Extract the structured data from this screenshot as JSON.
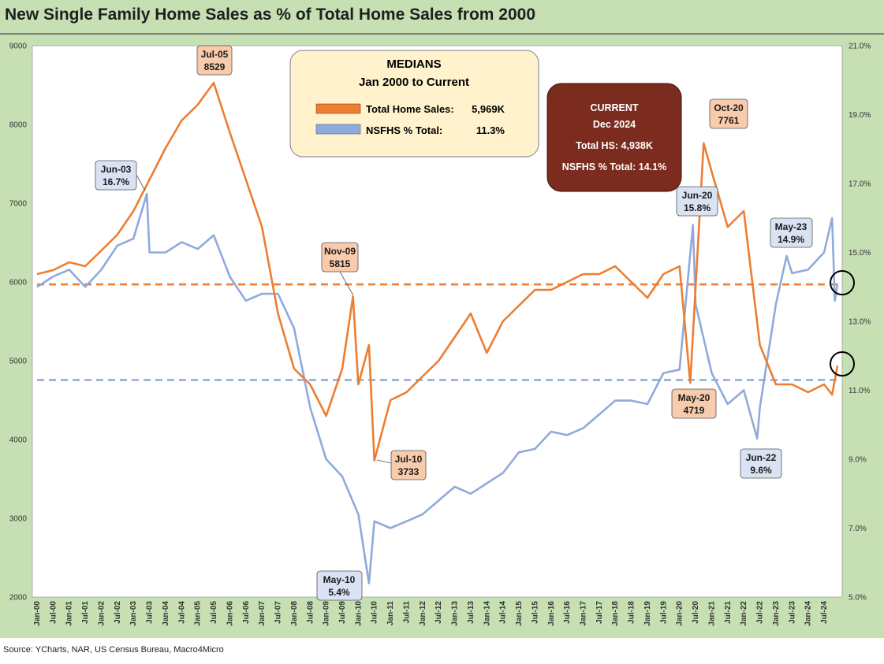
{
  "title": "New Single Family Home Sales as % of Total Home Sales from 2000",
  "source": "Source: YCharts, NAR, US Census Bureau, Macro4Micro",
  "colors": {
    "background": "#c6e0b4",
    "plot": "#ffffff",
    "total_sales": "#ed7d31",
    "nsfhs_pct": "#8faadc",
    "median_box": "#fff2cc",
    "current_box": "#7b2c1e",
    "orange_callout": "#f8cbad",
    "blue_callout": "#dae3f3"
  },
  "medians_box": {
    "title1": "MEDIANS",
    "title2": "Jan 2000 to Current",
    "row1_label": "Total Home Sales:",
    "row1_value": "5,969K",
    "row2_label": "NSFHS % Total:",
    "row2_value": "11.3%"
  },
  "current_box": {
    "title1": "CURRENT",
    "title2": "Dec 2024",
    "row1": "Total HS:  4,938K",
    "row2": "NSFHS % Total:  14.1%"
  },
  "callouts": {
    "jul05": {
      "line1": "Jul-05",
      "line2": "8529"
    },
    "jun03": {
      "line1": "Jun-03",
      "line2": "16.7%"
    },
    "nov09": {
      "line1": "Nov-09",
      "line2": "5815"
    },
    "jul10": {
      "line1": "Jul-10",
      "line2": "3733"
    },
    "may10": {
      "line1": "May-10",
      "line2": "5.4%"
    },
    "oct20": {
      "line1": "Oct-20",
      "line2": "7761"
    },
    "jun20": {
      "line1": "Jun-20",
      "line2": "15.8%"
    },
    "may20": {
      "line1": "May-20",
      "line2": "4719"
    },
    "jun22": {
      "line1": "Jun-22",
      "line2": "9.6%"
    },
    "may23": {
      "line1": "May-23",
      "line2": "14.9%"
    }
  },
  "chart_data": {
    "type": "line",
    "title": "New Single Family Home Sales as % of Total Home Sales from 2000",
    "x_start": "Jan-00",
    "x_end": "Dec-24",
    "x_ticks": [
      "Jan-00",
      "Jul-00",
      "Jan-01",
      "Jul-01",
      "Jan-02",
      "Jul-02",
      "Jan-03",
      "Jul-03",
      "Jan-04",
      "Jul-04",
      "Jan-05",
      "Jul-05",
      "Jan-06",
      "Jul-06",
      "Jan-07",
      "Jul-07",
      "Jan-08",
      "Jul-08",
      "Jan-09",
      "Jul-09",
      "Jan-10",
      "Jul-10",
      "Jan-11",
      "Jul-11",
      "Jan-12",
      "Jul-12",
      "Jan-13",
      "Jul-13",
      "Jan-14",
      "Jul-14",
      "Jan-15",
      "Jul-15",
      "Jan-16",
      "Jul-16",
      "Jan-17",
      "Jul-17",
      "Jan-18",
      "Jul-18",
      "Jan-19",
      "Jul-19",
      "Jan-20",
      "Jul-20",
      "Jan-21",
      "Jul-21",
      "Jan-22",
      "Jul-22",
      "Jan-23",
      "Jul-23",
      "Jan-24",
      "Jul-24"
    ],
    "y_left": {
      "min": 2000,
      "max": 9000,
      "ticks": [
        2000,
        3000,
        4000,
        5000,
        6000,
        7000,
        8000,
        9000
      ]
    },
    "y_right": {
      "min": 5.0,
      "max": 21.0,
      "ticks": [
        "5.0%",
        "7.0%",
        "9.0%",
        "11.0%",
        "13.0%",
        "15.0%",
        "17.0%",
        "19.0%",
        "21.0%"
      ]
    },
    "grid": false,
    "series": [
      {
        "name": "Total Home Sales",
        "axis": "left",
        "median": 5969,
        "points": [
          [
            "Jan-00",
            6100
          ],
          [
            "Jul-00",
            6150
          ],
          [
            "Jan-01",
            6250
          ],
          [
            "Jul-01",
            6200
          ],
          [
            "Jan-02",
            6400
          ],
          [
            "Jul-02",
            6600
          ],
          [
            "Jan-03",
            6900
          ],
          [
            "Jul-03",
            7300
          ],
          [
            "Jan-04",
            7700
          ],
          [
            "Jul-04",
            8050
          ],
          [
            "Jan-05",
            8250
          ],
          [
            "Jul-05",
            8529
          ],
          [
            "Jan-06",
            7900
          ],
          [
            "Jul-06",
            7300
          ],
          [
            "Jan-07",
            6700
          ],
          [
            "Jul-07",
            5600
          ],
          [
            "Jan-08",
            4900
          ],
          [
            "Jul-08",
            4700
          ],
          [
            "Jan-09",
            4300
          ],
          [
            "Jul-09",
            4900
          ],
          [
            "Nov-09",
            5815
          ],
          [
            "Jan-10",
            4700
          ],
          [
            "May-10",
            5200
          ],
          [
            "Jul-10",
            3733
          ],
          [
            "Jan-11",
            4500
          ],
          [
            "Jul-11",
            4600
          ],
          [
            "Jan-12",
            4800
          ],
          [
            "Jul-12",
            5000
          ],
          [
            "Jan-13",
            5300
          ],
          [
            "Jul-13",
            5600
          ],
          [
            "Jan-14",
            5100
          ],
          [
            "Jul-14",
            5500
          ],
          [
            "Jan-15",
            5700
          ],
          [
            "Jul-15",
            5900
          ],
          [
            "Jan-16",
            5900
          ],
          [
            "Jul-16",
            6000
          ],
          [
            "Jan-17",
            6100
          ],
          [
            "Jul-17",
            6100
          ],
          [
            "Jan-18",
            6200
          ],
          [
            "Jul-18",
            6000
          ],
          [
            "Jan-19",
            5800
          ],
          [
            "Jul-19",
            6100
          ],
          [
            "Jan-20",
            6200
          ],
          [
            "May-20",
            4719
          ],
          [
            "Oct-20",
            7761
          ],
          [
            "Jan-21",
            7400
          ],
          [
            "Jul-21",
            6700
          ],
          [
            "Jan-22",
            6900
          ],
          [
            "Jul-22",
            5200
          ],
          [
            "Jan-23",
            4700
          ],
          [
            "Jul-23",
            4700
          ],
          [
            "Jan-24",
            4600
          ],
          [
            "Jul-24",
            4700
          ],
          [
            "Oct-24",
            4570
          ],
          [
            "Dec-24",
            4938
          ]
        ]
      },
      {
        "name": "NSFHS % Total",
        "axis": "right",
        "median": 11.3,
        "points": [
          [
            "Jan-00",
            14.0
          ],
          [
            "Jul-00",
            14.3
          ],
          [
            "Jan-01",
            14.5
          ],
          [
            "Jul-01",
            14.0
          ],
          [
            "Jan-02",
            14.5
          ],
          [
            "Jul-02",
            15.2
          ],
          [
            "Jan-03",
            15.4
          ],
          [
            "Jun-03",
            16.7
          ],
          [
            "Jul-03",
            15.0
          ],
          [
            "Jan-04",
            15.0
          ],
          [
            "Jul-04",
            15.3
          ],
          [
            "Jan-05",
            15.1
          ],
          [
            "Jul-05",
            15.5
          ],
          [
            "Jan-06",
            14.3
          ],
          [
            "Jul-06",
            13.6
          ],
          [
            "Jan-07",
            13.8
          ],
          [
            "Jul-07",
            13.8
          ],
          [
            "Jan-08",
            12.8
          ],
          [
            "Jul-08",
            10.5
          ],
          [
            "Jan-09",
            9.0
          ],
          [
            "Jul-09",
            8.5
          ],
          [
            "Jan-10",
            7.4
          ],
          [
            "May-10",
            5.4
          ],
          [
            "Jul-10",
            7.2
          ],
          [
            "Jan-11",
            7.0
          ],
          [
            "Jul-11",
            7.2
          ],
          [
            "Jan-12",
            7.4
          ],
          [
            "Jul-12",
            7.8
          ],
          [
            "Jan-13",
            8.2
          ],
          [
            "Jul-13",
            8.0
          ],
          [
            "Jan-14",
            8.3
          ],
          [
            "Jul-14",
            8.6
          ],
          [
            "Jan-15",
            9.2
          ],
          [
            "Jul-15",
            9.3
          ],
          [
            "Jan-16",
            9.8
          ],
          [
            "Jul-16",
            9.7
          ],
          [
            "Jan-17",
            9.9
          ],
          [
            "Jul-17",
            10.3
          ],
          [
            "Jan-18",
            10.7
          ],
          [
            "Jul-18",
            10.7
          ],
          [
            "Jan-19",
            10.6
          ],
          [
            "Jul-19",
            11.5
          ],
          [
            "Jan-20",
            11.6
          ],
          [
            "Jun-20",
            15.8
          ],
          [
            "Jul-20",
            13.5
          ],
          [
            "Jan-21",
            11.5
          ],
          [
            "Jul-21",
            10.6
          ],
          [
            "Jan-22",
            11.0
          ],
          [
            "Jun-22",
            9.6
          ],
          [
            "Jul-22",
            10.5
          ],
          [
            "Jan-23",
            13.5
          ],
          [
            "May-23",
            14.9
          ],
          [
            "Jul-23",
            14.4
          ],
          [
            "Jan-24",
            14.5
          ],
          [
            "Jul-24",
            15.0
          ],
          [
            "Oct-24",
            16.0
          ],
          [
            "Nov-24",
            13.6
          ],
          [
            "Dec-24",
            14.1
          ]
        ]
      }
    ]
  }
}
